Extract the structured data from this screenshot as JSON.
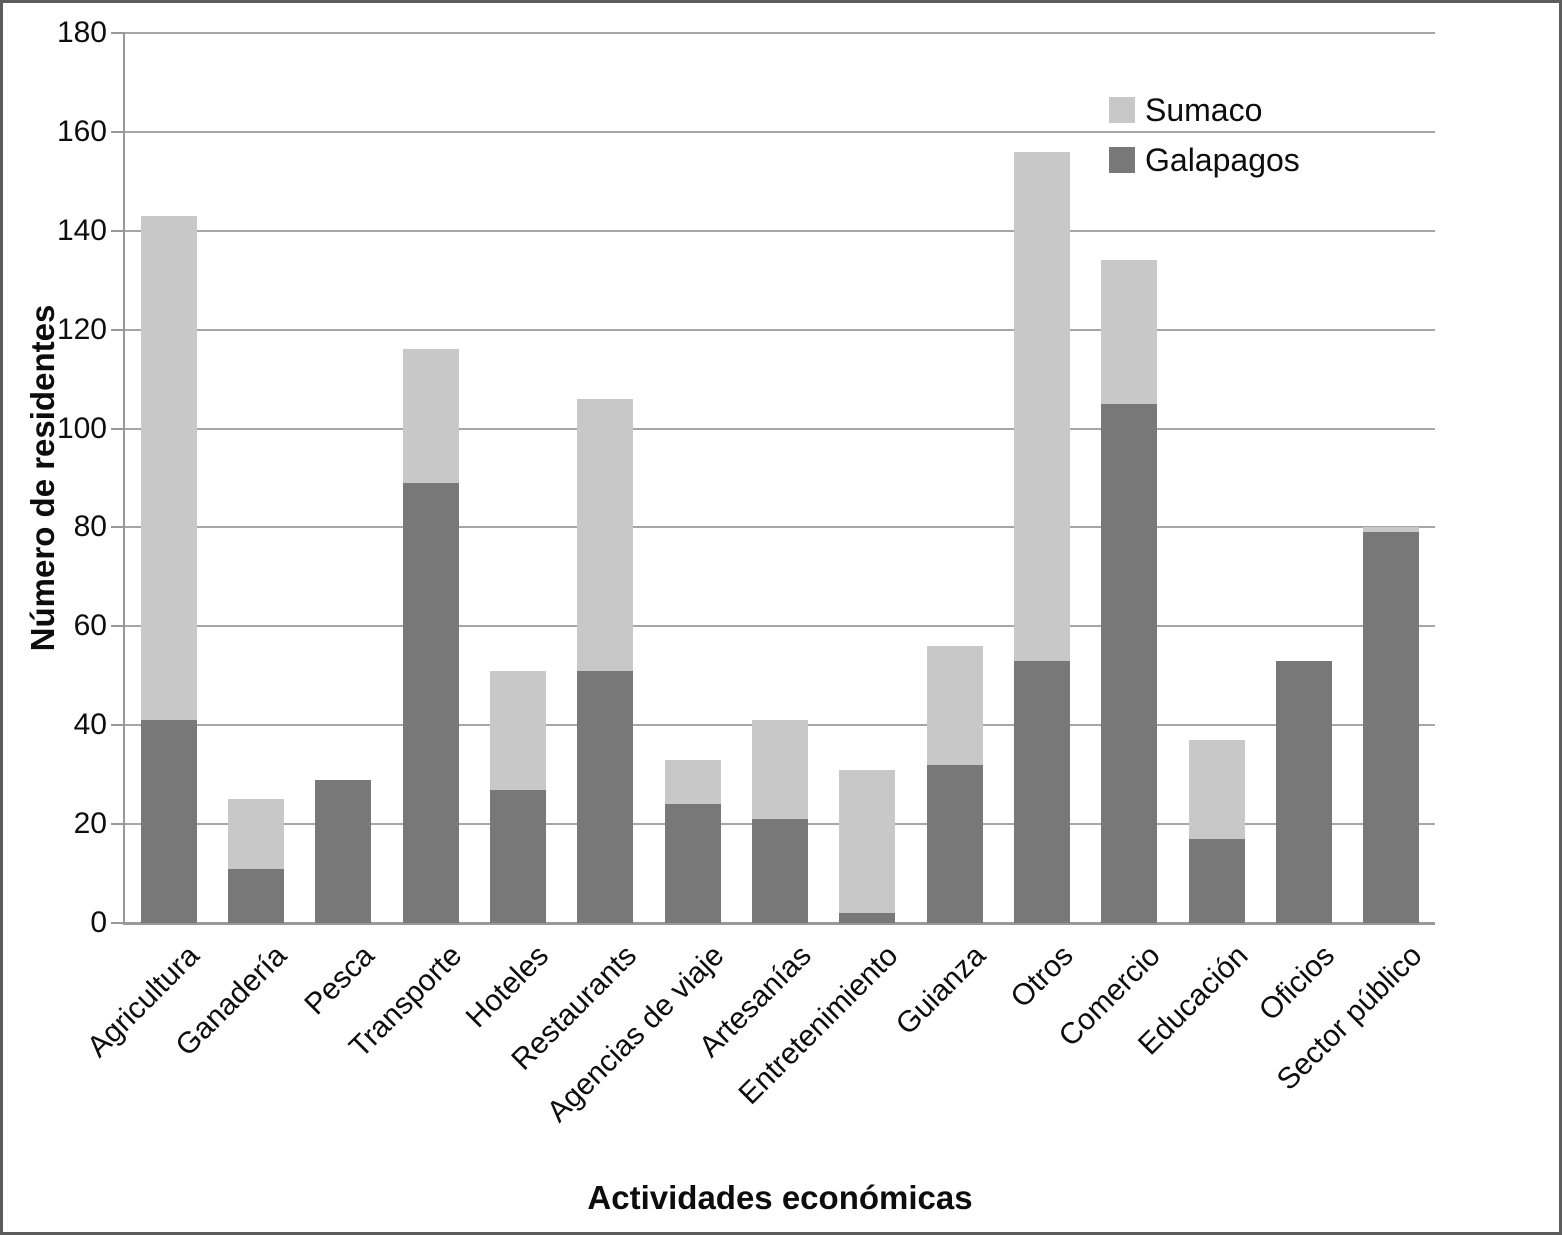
{
  "chart_data": {
    "type": "bar",
    "stacked": true,
    "xlabel": "Actividades económicas",
    "ylabel": "Número de residentes",
    "ylim": [
      0,
      180
    ],
    "ytick_step": 20,
    "y_ticks": [
      "0",
      "20",
      "40",
      "60",
      "80",
      "100",
      "120",
      "140",
      "160",
      "180"
    ],
    "grid": true,
    "legend_position": "top-right-inside",
    "legend_order": [
      "Sumaco",
      "Galapagos"
    ],
    "categories": [
      "Agricultura",
      "Ganadería",
      "Pesca",
      "Transporte",
      "Hoteles",
      "Restaurants",
      "Agencias de viaje",
      "Artesanías",
      "Entretenimiento",
      "Guianza",
      "Otros",
      "Comercio",
      "Educación",
      "Oficios",
      "Sector público"
    ],
    "series": [
      {
        "name": "Galapagos",
        "color": "#787878",
        "values": [
          41,
          11,
          29,
          89,
          27,
          51,
          24,
          21,
          2,
          32,
          53,
          105,
          17,
          53,
          79
        ]
      },
      {
        "name": "Sumaco",
        "color": "#c8c8c8",
        "values": [
          102,
          14,
          0,
          27,
          24,
          55,
          9,
          20,
          29,
          24,
          103,
          29,
          20,
          0,
          1
        ]
      }
    ],
    "totals": [
      143,
      25,
      29,
      116,
      51,
      106,
      33,
      41,
      31,
      56,
      156,
      134,
      37,
      53,
      80
    ],
    "colors": {
      "gridline": "#a6a6a6",
      "axis": "#989898",
      "text": "#0d0d0d"
    }
  }
}
